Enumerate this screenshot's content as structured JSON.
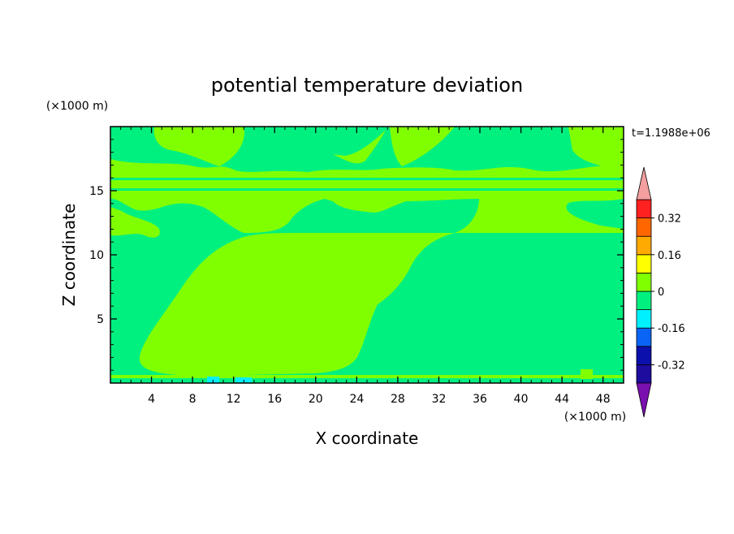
{
  "chart_data": {
    "type": "heatmap",
    "title": "potential temperature deviation",
    "xlabel": "X coordinate",
    "ylabel": "Z coordinate",
    "x_unit": "(×1000 m)",
    "y_unit": "(×1000 m)",
    "time_label": "t=1.1988e+06",
    "xlim": [
      0,
      50
    ],
    "ylim": [
      0,
      20
    ],
    "x_ticks": [
      4,
      8,
      12,
      16,
      20,
      24,
      28,
      32,
      36,
      40,
      44,
      48
    ],
    "y_ticks": [
      5,
      10,
      15
    ],
    "colorbar": {
      "labels": [
        "0.32",
        "0.16",
        "0",
        "-0.16",
        "-0.32"
      ],
      "levels": [
        -0.4,
        -0.32,
        -0.24,
        -0.16,
        -0.08,
        0,
        0.08,
        0.16,
        0.24,
        0.32,
        0.4
      ],
      "colors": [
        "#5a169e",
        "#1d0c9e",
        "#0b0fac",
        "#0a64f5",
        "#00f0ff",
        "#00f080",
        "#80ff00",
        "#ffff00",
        "#ffaa00",
        "#ff6600",
        "#ff2020",
        "#f4a0a0"
      ],
      "under_color": "#7a10b0",
      "over_color": "#f4a0a0"
    },
    "regions": [
      {
        "name": "positive anomaly (0 to 0.08) lower-mid domain",
        "value_range": [
          0,
          0.08
        ],
        "color": "#80ff00"
      },
      {
        "name": "negative anomaly (-0.08 to 0) background",
        "value_range": [
          -0.08,
          0
        ],
        "color": "#00f080"
      },
      {
        "name": "stratified layers near z=15",
        "value_range": [
          -0.08,
          0.08
        ],
        "color": "#80ff00"
      }
    ]
  }
}
